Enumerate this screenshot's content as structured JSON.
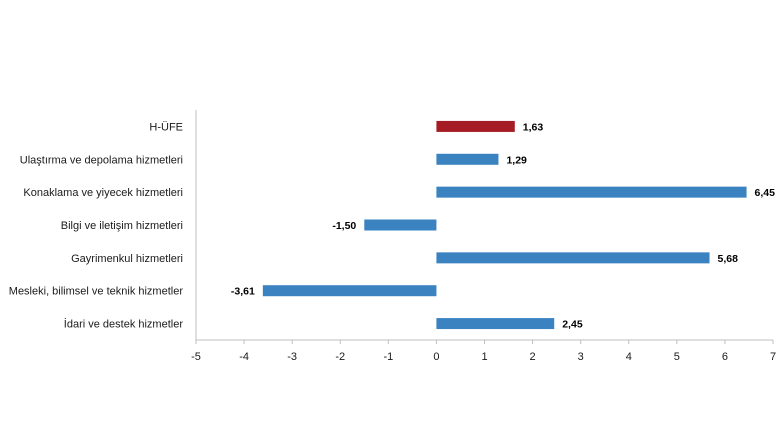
{
  "chart_data": {
    "type": "bar",
    "orientation": "horizontal",
    "title": "",
    "xlabel": "",
    "ylabel": "",
    "categories": [
      "H-ÜFE",
      "Ulaştırma ve depolama hizmetleri",
      "Konaklama ve yiyecek hizmetleri",
      "Bilgi ve iletişim hizmetleri",
      "Gayrimenkul hizmetleri",
      "Mesleki, bilimsel ve teknik hizmetler",
      "İdari ve destek hizmetler"
    ],
    "values": [
      1.63,
      1.29,
      6.45,
      -1.5,
      5.68,
      -3.61,
      2.45
    ],
    "value_labels": [
      "1,63",
      "1,29",
      "6,45",
      "-1,50",
      "5,68",
      "-3,61",
      "2,45"
    ],
    "xlim": [
      -5,
      7
    ],
    "xticks": [
      "-5",
      "-4",
      "-3",
      "-2",
      "-1",
      "0",
      "1",
      "2",
      "3",
      "4",
      "5",
      "6",
      "7"
    ],
    "grid": false,
    "legend": "none",
    "colors": {
      "highlight": "#A51C24",
      "default": "#3A82C0",
      "axis": "#BFBFBF"
    },
    "highlight_index": 0
  }
}
